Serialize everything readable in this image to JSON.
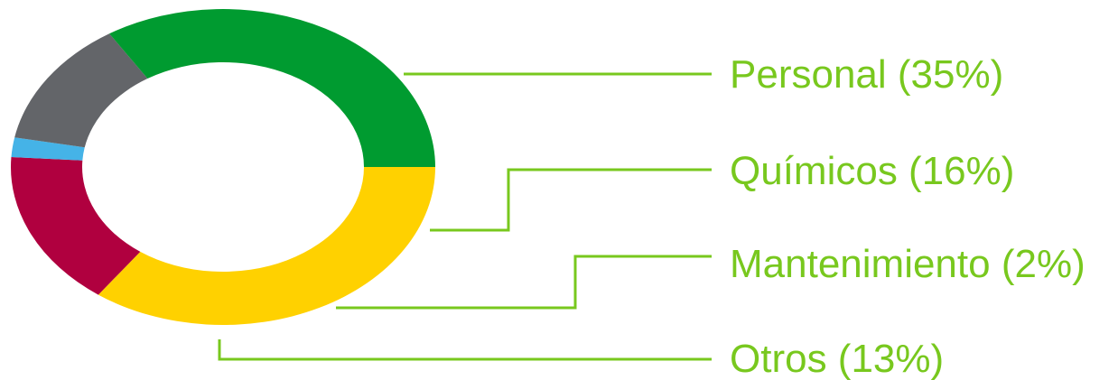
{
  "chart_data": {
    "type": "pie",
    "variant": "donut",
    "series": [
      {
        "label": "Personal (35%)",
        "value": 35,
        "color": "#FFD100",
        "labeled": true
      },
      {
        "label": "Químicos (16%)",
        "value": 16,
        "color": "#B0003F",
        "labeled": true
      },
      {
        "label": "Mantenimiento (2%)",
        "value": 2,
        "color": "#45B3E7",
        "labeled": true
      },
      {
        "label": "Otros (13%)",
        "value": 13,
        "color": "#636569",
        "labeled": true
      },
      {
        "label": "",
        "value": 34,
        "color": "#009B30",
        "labeled": false
      }
    ],
    "label_color": "#78C81E",
    "leader_line_color": "#78C81E"
  }
}
